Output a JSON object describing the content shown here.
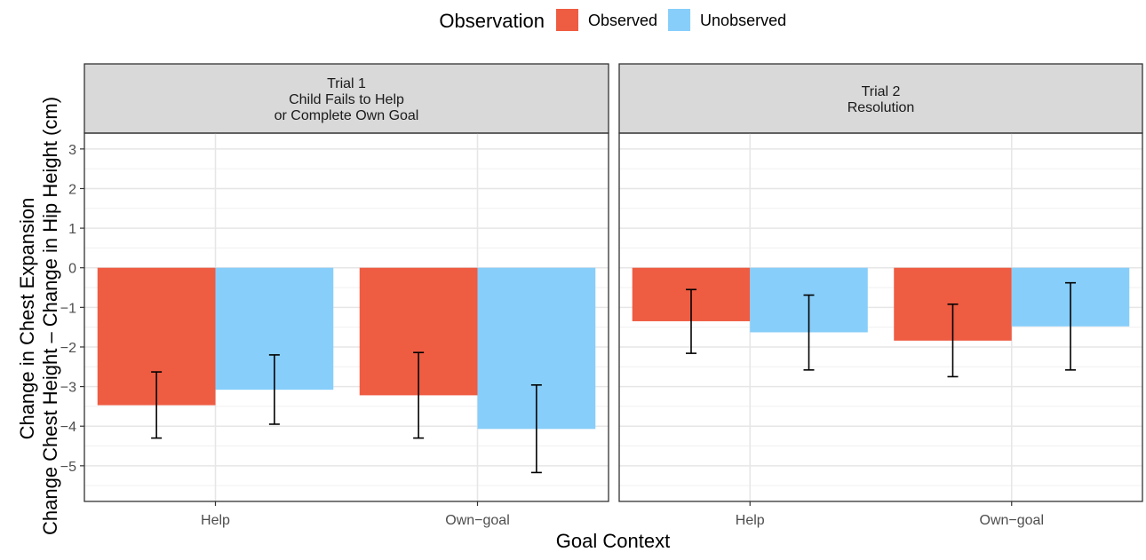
{
  "chart_data": {
    "type": "bar",
    "legend": {
      "title": "Observation",
      "placement": "top",
      "entries": [
        {
          "name": "Observed",
          "color": "#EE5C42"
        },
        {
          "name": "Unobserved",
          "color": "#87CEFA"
        }
      ]
    },
    "xlabel": "Goal Context",
    "ylabel_lines": [
      "Change in Chest Expansion",
      "Change Chest Height – Change in Hip Height (cm)"
    ],
    "ylim": [
      -5.9,
      3.4
    ],
    "yticks": [
      3,
      2,
      1,
      0,
      -1,
      -2,
      -3,
      -4,
      -5
    ],
    "ytick_labels": [
      "3",
      "2",
      "1",
      "0",
      "−1",
      "−2",
      "−3",
      "−4",
      "−5"
    ],
    "grid": true,
    "categories": [
      "Help",
      "Own−goal"
    ],
    "panels": [
      {
        "title_lines": [
          "Trial 1",
          "Child Fails to Help",
          "or Complete Own Goal"
        ],
        "series": [
          {
            "name": "Observed",
            "values": [
              -3.47,
              -3.22
            ],
            "err_low": [
              -4.3,
              -4.3
            ],
            "err_high": [
              -2.63,
              -2.14
            ]
          },
          {
            "name": "Unobserved",
            "values": [
              -3.08,
              -4.07
            ],
            "err_low": [
              -3.95,
              -5.17
            ],
            "err_high": [
              -2.2,
              -2.96
            ]
          }
        ]
      },
      {
        "title_lines": [
          "Trial 2",
          "Resolution"
        ],
        "series": [
          {
            "name": "Observed",
            "values": [
              -1.35,
              -1.84
            ],
            "err_low": [
              -2.16,
              -2.75
            ],
            "err_high": [
              -0.55,
              -0.92
            ]
          },
          {
            "name": "Unobserved",
            "values": [
              -1.63,
              -1.48
            ],
            "err_low": [
              -2.58,
              -2.58
            ],
            "err_high": [
              -0.69,
              -0.38
            ]
          }
        ]
      }
    ]
  }
}
